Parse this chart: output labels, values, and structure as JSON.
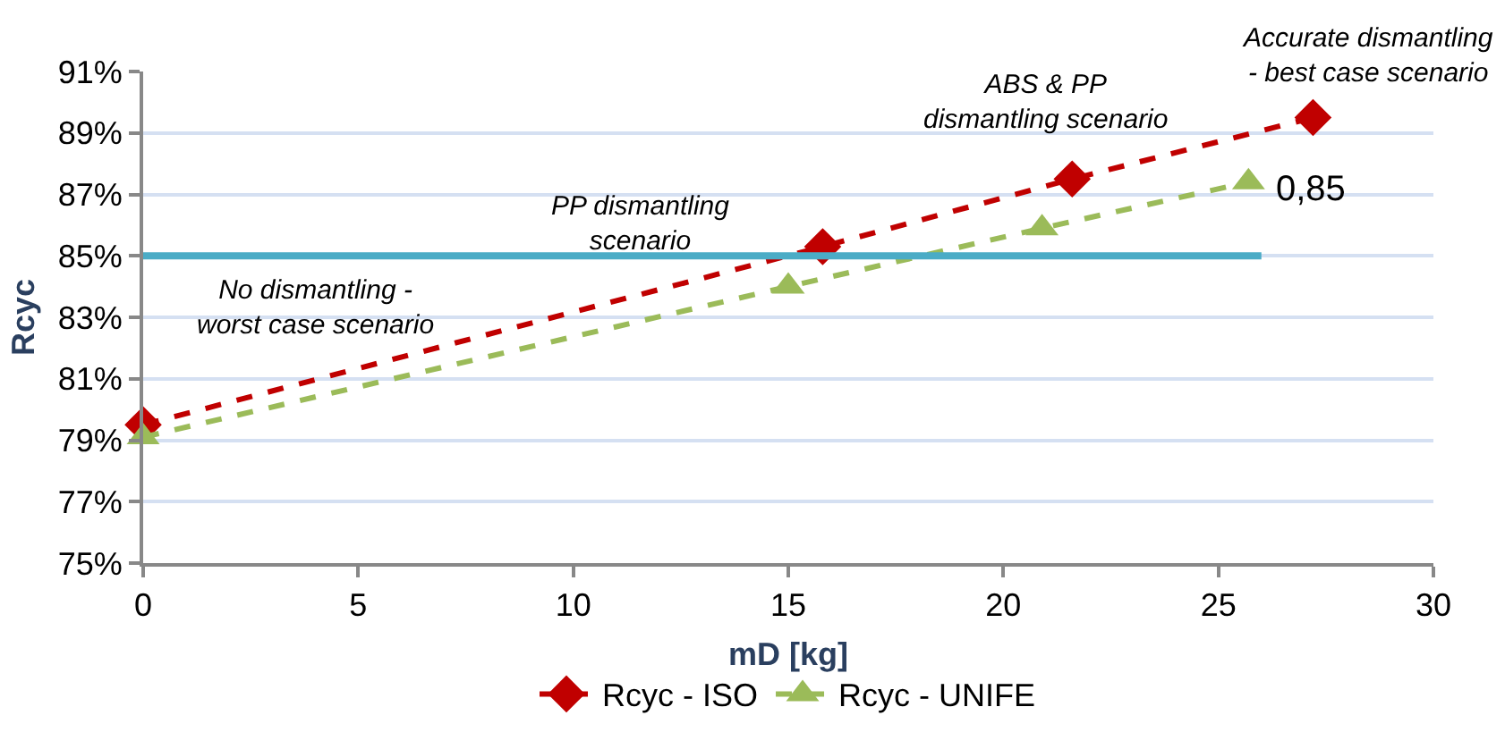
{
  "chart_data": {
    "type": "line",
    "xlabel": "mD [kg]",
    "ylabel": "Rcyc",
    "xlim": [
      0,
      30
    ],
    "xticks": [
      0,
      5,
      10,
      15,
      20,
      25,
      30
    ],
    "ylim": [
      75,
      91
    ],
    "yticks": [
      {
        "value": 75,
        "label": "75%"
      },
      {
        "value": 77,
        "label": "77%"
      },
      {
        "value": 79,
        "label": "79%"
      },
      {
        "value": 81,
        "label": "81%"
      },
      {
        "value": 83,
        "label": "83%"
      },
      {
        "value": 85,
        "label": "85%"
      },
      {
        "value": 87,
        "label": "87%"
      },
      {
        "value": 89,
        "label": "89%"
      },
      {
        "value": 91,
        "label": "91%"
      }
    ],
    "series": [
      {
        "name": "Rcyc - ISO",
        "color": "#c00000",
        "x": [
          0,
          15.8,
          21.6,
          27.2
        ],
        "values": [
          79.5,
          85.3,
          87.5,
          89.5
        ],
        "marker": "diamond",
        "line_style": "dashed"
      },
      {
        "name": "Rcyc - UNIFE",
        "color": "#9bbb59",
        "x": [
          0,
          15,
          20.9,
          25.7
        ],
        "values": [
          79.1,
          84,
          85.9,
          87.4
        ],
        "marker": "triangle",
        "line_style": "dashed"
      },
      {
        "color": "#4bacc6",
        "x": [
          0,
          26
        ],
        "values": [
          85,
          85
        ],
        "marker": "none",
        "line_style": "solid"
      }
    ],
    "annotations": [
      "No dismantling -\nworst case scenario",
      "PP dismantling\nscenario",
      "ABS & PP\ndismantling scenario",
      "Accurate dismantling\n- best case scenario",
      "0,85"
    ],
    "grid": "y",
    "legend": "bottom"
  }
}
